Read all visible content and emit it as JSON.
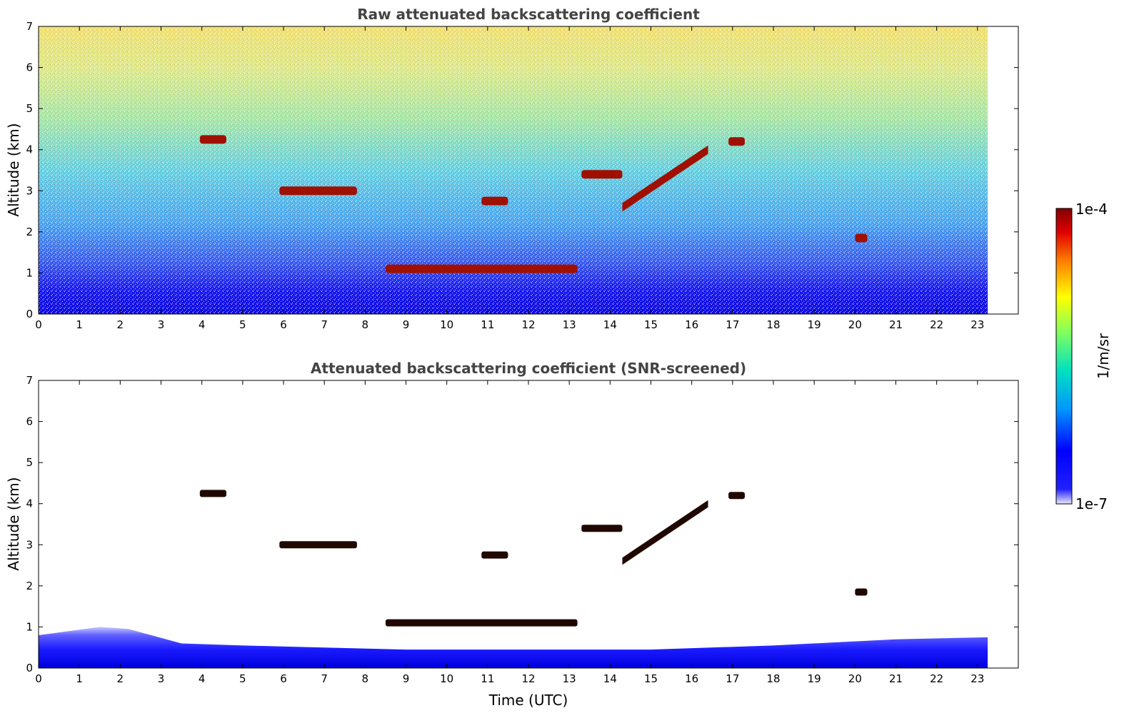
{
  "chart_data": [
    {
      "type": "heatmap",
      "title": "Raw attenuated backscattering coefficient",
      "xlabel": "",
      "ylabel": "Altitude (km)",
      "xlim": [
        0,
        24
      ],
      "ylim": [
        0,
        7
      ],
      "x_ticks": [
        0,
        1,
        2,
        3,
        4,
        5,
        6,
        7,
        8,
        9,
        10,
        11,
        12,
        13,
        14,
        15,
        16,
        17,
        18,
        19,
        20,
        21,
        22,
        23
      ],
      "y_ticks": [
        0,
        1,
        2,
        3,
        4,
        5,
        6,
        7
      ],
      "data_extent_hours": [
        0,
        23.25
      ],
      "grid": false,
      "features": [
        {
          "kind": "noise-background",
          "description_levels": "low near surface, high aloft"
        },
        {
          "kind": "cloud-layer",
          "t_start": 3.95,
          "t_end": 4.6,
          "alt_km": 4.25
        },
        {
          "kind": "cloud-layer",
          "t_start": 5.9,
          "t_end": 7.8,
          "alt_km": 3.0
        },
        {
          "kind": "cloud-layer",
          "t_start": 10.85,
          "t_end": 11.5,
          "alt_km": 2.75
        },
        {
          "kind": "cloud-layer",
          "t_start": 13.3,
          "t_end": 14.3,
          "alt_km": 3.4
        },
        {
          "kind": "cloud-layer",
          "t_start": 14.3,
          "t_end": 16.4,
          "alt_km_start": 2.6,
          "alt_km_end": 4.0
        },
        {
          "kind": "cloud-layer",
          "t_start": 16.9,
          "t_end": 17.3,
          "alt_km": 4.2
        },
        {
          "kind": "cloud-layer",
          "t_start": 8.5,
          "t_end": 13.2,
          "alt_km": 1.1
        },
        {
          "kind": "cloud-layer",
          "t_start": 20.0,
          "t_end": 20.3,
          "alt_km": 1.85
        }
      ]
    },
    {
      "type": "heatmap",
      "title": "Attenuated backscattering coefficient (SNR-screened)",
      "xlabel": "Time (UTC)",
      "ylabel": "Altitude (km)",
      "xlim": [
        0,
        24
      ],
      "ylim": [
        0,
        7
      ],
      "x_ticks": [
        0,
        1,
        2,
        3,
        4,
        5,
        6,
        7,
        8,
        9,
        10,
        11,
        12,
        13,
        14,
        15,
        16,
        17,
        18,
        19,
        20,
        21,
        22,
        23
      ],
      "y_ticks": [
        0,
        1,
        2,
        3,
        4,
        5,
        6,
        7
      ],
      "data_extent_hours": [
        0,
        23.25
      ],
      "grid": false,
      "boundary_layer_top_km": [
        {
          "t": 0,
          "alt": 0.8
        },
        {
          "t": 1.5,
          "alt": 1.0
        },
        {
          "t": 2.2,
          "alt": 0.95
        },
        {
          "t": 3.5,
          "alt": 0.6
        },
        {
          "t": 5,
          "alt": 0.55
        },
        {
          "t": 7,
          "alt": 0.5
        },
        {
          "t": 9,
          "alt": 0.45
        },
        {
          "t": 12,
          "alt": 0.45
        },
        {
          "t": 15,
          "alt": 0.45
        },
        {
          "t": 18,
          "alt": 0.55
        },
        {
          "t": 21,
          "alt": 0.7
        },
        {
          "t": 23.25,
          "alt": 0.75
        }
      ]
    }
  ],
  "colorbar": {
    "label": "1/m/sr",
    "max_label": "1e-4",
    "min_label": "1e-7",
    "scale": "log",
    "colors": [
      "#e8e8f8",
      "#0000ff",
      "#0096ff",
      "#00e0c0",
      "#80ff60",
      "#ffff00",
      "#ff8000",
      "#e00000",
      "#800000"
    ]
  }
}
